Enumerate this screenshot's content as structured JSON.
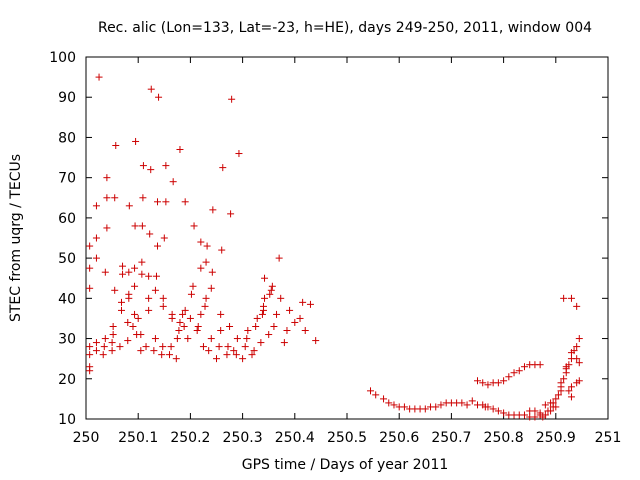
{
  "chart_data": {
    "type": "scatter",
    "title": "Rec. alic (Lon=133, Lat=-23, h=HE), days 249-250, 2011, window 004",
    "xlabel": "GPS time / Days of year 2011",
    "ylabel": "STEC from uqrg / TECUs",
    "xlim": [
      250,
      251
    ],
    "ylim": [
      10,
      100
    ],
    "x_ticks": [
      "250",
      "250.1",
      "250.2",
      "250.3",
      "250.4",
      "250.5",
      "250.6",
      "250.7",
      "250.8",
      "250.9",
      "251"
    ],
    "y_ticks": [
      "10",
      "20",
      "30",
      "40",
      "50",
      "60",
      "70",
      "80",
      "90",
      "100"
    ],
    "x_tick_values": [
      250,
      250.1,
      250.2,
      250.3,
      250.4,
      250.5,
      250.6,
      250.7,
      250.8,
      250.9,
      251
    ],
    "y_tick_values": [
      10,
      20,
      30,
      40,
      50,
      60,
      70,
      80,
      90,
      100
    ],
    "grid": false,
    "marker": "plus",
    "color": "#cc0000",
    "series": [
      {
        "points": [
          [
            250.007,
            22
          ],
          [
            250.007,
            23
          ],
          [
            250.007,
            26
          ],
          [
            250.007,
            28
          ],
          [
            250.007,
            42.5
          ],
          [
            250.007,
            47.5
          ],
          [
            250.007,
            53
          ],
          [
            250.02,
            27
          ],
          [
            250.02,
            29
          ],
          [
            250.02,
            50
          ],
          [
            250.02,
            55
          ],
          [
            250.02,
            63
          ],
          [
            250.025,
            95
          ],
          [
            250.033,
            26
          ],
          [
            250.035,
            28
          ],
          [
            250.037,
            30
          ],
          [
            250.037,
            46.5
          ],
          [
            250.04,
            57.5
          ],
          [
            250.04,
            65
          ],
          [
            250.04,
            70
          ],
          [
            250.05,
            27
          ],
          [
            250.05,
            29
          ],
          [
            250.052,
            31
          ],
          [
            250.052,
            33
          ],
          [
            250.055,
            42
          ],
          [
            250.055,
            65
          ],
          [
            250.057,
            78
          ],
          [
            250.065,
            28
          ],
          [
            250.068,
            37
          ],
          [
            250.068,
            39
          ],
          [
            250.07,
            46
          ],
          [
            250.07,
            48
          ],
          [
            250.08,
            29.5
          ],
          [
            250.08,
            34
          ],
          [
            250.082,
            40
          ],
          [
            250.082,
            41
          ],
          [
            250.082,
            46.5
          ],
          [
            250.083,
            63
          ],
          [
            250.09,
            33
          ],
          [
            250.093,
            36
          ],
          [
            250.093,
            43
          ],
          [
            250.093,
            47.5
          ],
          [
            250.094,
            58
          ],
          [
            250.095,
            79
          ],
          [
            250.097,
            31
          ],
          [
            250.1,
            35
          ],
          [
            250.105,
            27
          ],
          [
            250.105,
            31
          ],
          [
            250.107,
            46
          ],
          [
            250.107,
            49
          ],
          [
            250.108,
            58
          ],
          [
            250.109,
            65
          ],
          [
            250.11,
            73
          ],
          [
            250.115,
            28
          ],
          [
            250.12,
            37
          ],
          [
            250.12,
            40
          ],
          [
            250.12,
            45.5
          ],
          [
            250.122,
            56
          ],
          [
            250.124,
            72
          ],
          [
            250.125,
            92
          ],
          [
            250.13,
            27
          ],
          [
            250.133,
            30
          ],
          [
            250.133,
            42
          ],
          [
            250.135,
            45.5
          ],
          [
            250.137,
            53
          ],
          [
            250.137,
            64
          ],
          [
            250.139,
            90
          ],
          [
            250.145,
            26
          ],
          [
            250.147,
            28
          ],
          [
            250.148,
            38
          ],
          [
            250.148,
            40
          ],
          [
            250.15,
            55
          ],
          [
            250.153,
            64
          ],
          [
            250.153,
            73
          ],
          [
            250.16,
            26
          ],
          [
            250.163,
            28
          ],
          [
            250.165,
            35
          ],
          [
            250.165,
            36
          ],
          [
            250.167,
            69
          ],
          [
            250.173,
            25
          ],
          [
            250.175,
            30
          ],
          [
            250.178,
            32
          ],
          [
            250.18,
            34
          ],
          [
            250.18,
            77
          ],
          [
            250.185,
            36
          ],
          [
            250.188,
            33
          ],
          [
            250.19,
            37
          ],
          [
            250.19,
            64
          ],
          [
            250.195,
            30
          ],
          [
            250.2,
            35
          ],
          [
            250.202,
            41
          ],
          [
            250.205,
            43
          ],
          [
            250.207,
            58
          ],
          [
            250.213,
            32
          ],
          [
            250.215,
            33
          ],
          [
            250.22,
            36
          ],
          [
            250.22,
            47.5
          ],
          [
            250.22,
            54
          ],
          [
            250.225,
            28
          ],
          [
            250.228,
            38
          ],
          [
            250.23,
            40
          ],
          [
            250.23,
            49
          ],
          [
            250.232,
            53
          ],
          [
            250.235,
            27
          ],
          [
            250.24,
            30
          ],
          [
            250.24,
            42.5
          ],
          [
            250.242,
            46.5
          ],
          [
            250.243,
            62
          ],
          [
            250.25,
            25
          ],
          [
            250.255,
            28
          ],
          [
            250.258,
            32
          ],
          [
            250.258,
            36
          ],
          [
            250.26,
            52
          ],
          [
            250.262,
            72.5
          ],
          [
            250.27,
            26
          ],
          [
            250.272,
            28
          ],
          [
            250.275,
            33
          ],
          [
            250.277,
            61
          ],
          [
            250.279,
            89.5
          ],
          [
            250.283,
            27
          ],
          [
            250.288,
            26
          ],
          [
            250.29,
            30
          ],
          [
            250.293,
            76
          ],
          [
            250.3,
            25
          ],
          [
            250.305,
            28
          ],
          [
            250.308,
            30
          ],
          [
            250.31,
            32
          ],
          [
            250.318,
            26
          ],
          [
            250.322,
            27
          ],
          [
            250.325,
            33
          ],
          [
            250.328,
            35
          ],
          [
            250.335,
            29
          ],
          [
            250.338,
            36
          ],
          [
            250.34,
            37
          ],
          [
            250.34,
            38
          ],
          [
            250.342,
            40
          ],
          [
            250.342,
            45
          ],
          [
            250.35,
            31
          ],
          [
            250.352,
            41
          ],
          [
            250.355,
            42
          ],
          [
            250.357,
            43
          ],
          [
            250.36,
            33
          ],
          [
            250.365,
            36
          ],
          [
            250.37,
            50
          ],
          [
            250.373,
            40
          ],
          [
            250.38,
            29
          ],
          [
            250.385,
            32
          ],
          [
            250.39,
            37
          ],
          [
            250.4,
            34
          ],
          [
            250.41,
            35
          ],
          [
            250.415,
            39
          ],
          [
            250.42,
            32
          ],
          [
            250.43,
            38.5
          ],
          [
            250.44,
            29.5
          ],
          [
            250.545,
            17
          ],
          [
            250.555,
            16
          ],
          [
            250.57,
            15
          ],
          [
            250.58,
            14
          ],
          [
            250.59,
            13.5
          ],
          [
            250.6,
            13
          ],
          [
            250.61,
            13
          ],
          [
            250.62,
            12.5
          ],
          [
            250.63,
            12.5
          ],
          [
            250.64,
            12.5
          ],
          [
            250.65,
            12.5
          ],
          [
            250.66,
            13
          ],
          [
            250.67,
            13
          ],
          [
            250.68,
            13.5
          ],
          [
            250.69,
            14
          ],
          [
            250.7,
            14
          ],
          [
            250.71,
            14
          ],
          [
            250.72,
            14
          ],
          [
            250.73,
            13.5
          ],
          [
            250.74,
            14.5
          ],
          [
            250.75,
            13.5
          ],
          [
            250.76,
            13.5
          ],
          [
            250.765,
            13
          ],
          [
            250.77,
            13
          ],
          [
            250.78,
            12.5
          ],
          [
            250.79,
            12
          ],
          [
            250.8,
            11.5
          ],
          [
            250.81,
            11
          ],
          [
            250.82,
            11
          ],
          [
            250.83,
            11
          ],
          [
            250.84,
            11
          ],
          [
            250.85,
            12
          ],
          [
            250.86,
            12
          ],
          [
            250.87,
            11
          ],
          [
            250.875,
            10.5
          ],
          [
            250.88,
            11
          ],
          [
            250.885,
            12
          ],
          [
            250.89,
            12
          ],
          [
            250.895,
            13
          ],
          [
            250.9,
            13
          ],
          [
            250.75,
            19.5
          ],
          [
            250.76,
            19
          ],
          [
            250.77,
            18.5
          ],
          [
            250.78,
            19
          ],
          [
            250.79,
            19
          ],
          [
            250.8,
            19.5
          ],
          [
            250.81,
            20.5
          ],
          [
            250.82,
            21.5
          ],
          [
            250.83,
            22
          ],
          [
            250.84,
            23
          ],
          [
            250.85,
            23.5
          ],
          [
            250.86,
            23.5
          ],
          [
            250.87,
            23.5
          ],
          [
            250.85,
            10.5
          ],
          [
            250.86,
            10.5
          ],
          [
            250.87,
            11.5
          ],
          [
            250.88,
            13.5
          ],
          [
            250.89,
            14
          ],
          [
            250.895,
            14
          ],
          [
            250.9,
            15
          ],
          [
            250.905,
            16
          ],
          [
            250.91,
            17
          ],
          [
            250.91,
            18
          ],
          [
            250.91,
            19
          ],
          [
            250.915,
            20
          ],
          [
            250.92,
            21.5
          ],
          [
            250.92,
            22.5
          ],
          [
            250.925,
            23.5
          ],
          [
            250.93,
            25
          ],
          [
            250.93,
            26.5
          ],
          [
            250.935,
            27
          ],
          [
            250.94,
            25
          ],
          [
            250.94,
            28
          ],
          [
            250.945,
            30
          ],
          [
            250.945,
            24
          ],
          [
            250.945,
            19.5
          ],
          [
            250.94,
            19
          ],
          [
            250.915,
            40
          ],
          [
            250.93,
            40
          ],
          [
            250.94,
            38
          ],
          [
            250.92,
            23
          ],
          [
            250.925,
            17
          ],
          [
            250.93,
            15.5
          ],
          [
            250.93,
            18
          ]
        ]
      }
    ]
  }
}
